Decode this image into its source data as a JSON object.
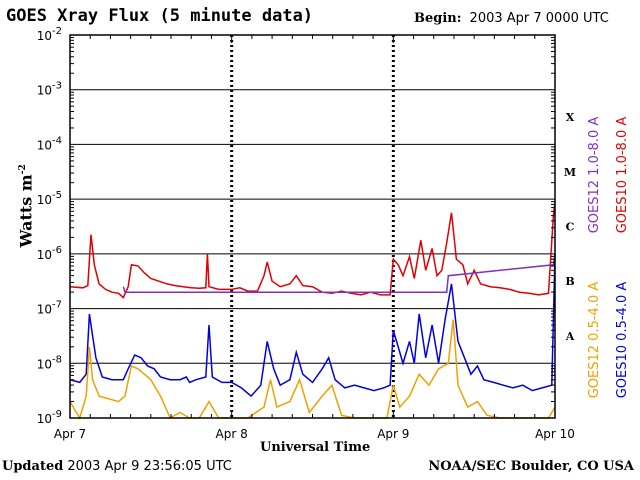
{
  "header": {
    "title": "GOES Xray Flux (5 minute data)",
    "begin_label": "Begin:",
    "begin_value": "2003 Apr  7 0000 UTC"
  },
  "footer": {
    "updated_label": "Updated",
    "updated_value": "2003 Apr  9 23:56:05 UTC",
    "credit": "NOAA/SEC Boulder, CO USA"
  },
  "chart_data": {
    "type": "line",
    "title": "GOES Xray Flux (5 minute data)",
    "xlabel": "Universal Time",
    "ylabel": "Watts m",
    "ylabel_sup": "-2",
    "log_scale": true,
    "grid": true,
    "xlim": [
      0,
      3
    ],
    "ylim_exponents": [
      -9,
      -2
    ],
    "x_ticks": [
      {
        "x": 0,
        "label": "Apr 7"
      },
      {
        "x": 1,
        "label": "Apr 8"
      },
      {
        "x": 2,
        "label": "Apr 9"
      },
      {
        "x": 3,
        "label": "Apr 10"
      }
    ],
    "y_ticks": [
      {
        "exp": -2,
        "label": "10",
        "sup": "-2"
      },
      {
        "exp": -3,
        "label": "10",
        "sup": "-3"
      },
      {
        "exp": -4,
        "label": "10",
        "sup": "-4"
      },
      {
        "exp": -5,
        "label": "10",
        "sup": "-5"
      },
      {
        "exp": -6,
        "label": "10",
        "sup": "-6"
      },
      {
        "exp": -7,
        "label": "10",
        "sup": "-7"
      },
      {
        "exp": -8,
        "label": "10",
        "sup": "-8"
      },
      {
        "exp": -9,
        "label": "10",
        "sup": "-9"
      }
    ],
    "flare_classes": [
      {
        "label": "X",
        "exp": -3.5
      },
      {
        "label": "M",
        "exp": -4.5
      },
      {
        "label": "C",
        "exp": -5.5
      },
      {
        "label": "B",
        "exp": -6.5
      },
      {
        "label": "A",
        "exp": -7.5
      }
    ],
    "legend": [
      {
        "text": "GOES12 1.0-8.0 A",
        "color": "#8030c0"
      },
      {
        "text": "GOES10 1.0-8.0 A",
        "color": "#e00000"
      },
      {
        "text": "GOES12 0.5-4.0 A",
        "color": "#f0a000"
      },
      {
        "text": "GOES10 0.5-4.0 A",
        "color": "#0000e0"
      }
    ],
    "series": [
      {
        "name": "GOES10 1.0-8.0 A",
        "color": "#e00000",
        "points": [
          [
            0.0,
            -6.6
          ],
          [
            0.08,
            -6.62
          ],
          [
            0.11,
            -6.58
          ],
          [
            0.13,
            -5.65
          ],
          [
            0.15,
            -6.2
          ],
          [
            0.18,
            -6.55
          ],
          [
            0.22,
            -6.65
          ],
          [
            0.26,
            -6.7
          ],
          [
            0.3,
            -6.72
          ],
          [
            0.33,
            -6.8
          ],
          [
            0.36,
            -6.6
          ],
          [
            0.38,
            -6.2
          ],
          [
            0.42,
            -6.22
          ],
          [
            0.46,
            -6.35
          ],
          [
            0.5,
            -6.45
          ],
          [
            0.55,
            -6.5
          ],
          [
            0.6,
            -6.55
          ],
          [
            0.65,
            -6.58
          ],
          [
            0.7,
            -6.6
          ],
          [
            0.75,
            -6.62
          ],
          [
            0.8,
            -6.63
          ],
          [
            0.84,
            -6.62
          ],
          [
            0.85,
            -6.0
          ],
          [
            0.86,
            -6.6
          ],
          [
            0.92,
            -6.65
          ],
          [
            1.0,
            -6.65
          ],
          [
            1.05,
            -6.62
          ],
          [
            1.1,
            -6.68
          ],
          [
            1.16,
            -6.68
          ],
          [
            1.2,
            -6.4
          ],
          [
            1.22,
            -6.15
          ],
          [
            1.25,
            -6.5
          ],
          [
            1.3,
            -6.6
          ],
          [
            1.36,
            -6.55
          ],
          [
            1.4,
            -6.4
          ],
          [
            1.44,
            -6.58
          ],
          [
            1.5,
            -6.6
          ],
          [
            1.56,
            -6.7
          ],
          [
            1.62,
            -6.72
          ],
          [
            1.68,
            -6.68
          ],
          [
            1.74,
            -6.72
          ],
          [
            1.8,
            -6.75
          ],
          [
            1.86,
            -6.7
          ],
          [
            1.92,
            -6.75
          ],
          [
            1.98,
            -6.75
          ],
          [
            2.0,
            -6.1
          ],
          [
            2.03,
            -6.2
          ],
          [
            2.06,
            -6.4
          ],
          [
            2.1,
            -6.05
          ],
          [
            2.13,
            -6.45
          ],
          [
            2.17,
            -5.75
          ],
          [
            2.2,
            -6.3
          ],
          [
            2.24,
            -5.9
          ],
          [
            2.27,
            -6.4
          ],
          [
            2.3,
            -6.3
          ],
          [
            2.33,
            -5.8
          ],
          [
            2.36,
            -5.25
          ],
          [
            2.39,
            -6.1
          ],
          [
            2.43,
            -6.2
          ],
          [
            2.46,
            -6.55
          ],
          [
            2.5,
            -6.3
          ],
          [
            2.54,
            -6.55
          ],
          [
            2.6,
            -6.6
          ],
          [
            2.66,
            -6.62
          ],
          [
            2.72,
            -6.65
          ],
          [
            2.78,
            -6.7
          ],
          [
            2.84,
            -6.72
          ],
          [
            2.9,
            -6.75
          ],
          [
            2.96,
            -6.72
          ],
          [
            2.99,
            -5.3
          ],
          [
            3.0,
            -5.05
          ]
        ]
      },
      {
        "name": "GOES10 0.5-4.0 A",
        "color": "#0000e0",
        "points": [
          [
            0.0,
            -8.3
          ],
          [
            0.06,
            -8.35
          ],
          [
            0.1,
            -8.2
          ],
          [
            0.12,
            -7.1
          ],
          [
            0.14,
            -7.5
          ],
          [
            0.16,
            -7.9
          ],
          [
            0.2,
            -8.25
          ],
          [
            0.26,
            -8.3
          ],
          [
            0.33,
            -8.3
          ],
          [
            0.36,
            -8.1
          ],
          [
            0.4,
            -7.85
          ],
          [
            0.44,
            -7.9
          ],
          [
            0.48,
            -8.05
          ],
          [
            0.52,
            -8.1
          ],
          [
            0.56,
            -8.25
          ],
          [
            0.62,
            -8.3
          ],
          [
            0.68,
            -8.3
          ],
          [
            0.72,
            -8.25
          ],
          [
            0.74,
            -8.35
          ],
          [
            0.78,
            -8.3
          ],
          [
            0.84,
            -8.25
          ],
          [
            0.86,
            -7.3
          ],
          [
            0.88,
            -8.25
          ],
          [
            0.94,
            -8.35
          ],
          [
            1.0,
            -8.35
          ],
          [
            1.06,
            -8.45
          ],
          [
            1.12,
            -8.6
          ],
          [
            1.18,
            -8.4
          ],
          [
            1.22,
            -7.6
          ],
          [
            1.26,
            -8.1
          ],
          [
            1.3,
            -8.4
          ],
          [
            1.36,
            -8.3
          ],
          [
            1.4,
            -7.8
          ],
          [
            1.44,
            -8.2
          ],
          [
            1.5,
            -8.35
          ],
          [
            1.56,
            -8.1
          ],
          [
            1.6,
            -7.9
          ],
          [
            1.64,
            -8.3
          ],
          [
            1.7,
            -8.45
          ],
          [
            1.76,
            -8.4
          ],
          [
            1.82,
            -8.45
          ],
          [
            1.88,
            -8.5
          ],
          [
            1.94,
            -8.45
          ],
          [
            1.98,
            -8.4
          ],
          [
            2.0,
            -7.4
          ],
          [
            2.03,
            -7.7
          ],
          [
            2.06,
            -8.0
          ],
          [
            2.1,
            -7.6
          ],
          [
            2.13,
            -8.0
          ],
          [
            2.16,
            -7.1
          ],
          [
            2.2,
            -7.9
          ],
          [
            2.24,
            -7.3
          ],
          [
            2.28,
            -8.0
          ],
          [
            2.32,
            -7.2
          ],
          [
            2.36,
            -6.55
          ],
          [
            2.4,
            -7.6
          ],
          [
            2.44,
            -7.9
          ],
          [
            2.48,
            -8.2
          ],
          [
            2.52,
            -8.05
          ],
          [
            2.56,
            -8.3
          ],
          [
            2.62,
            -8.35
          ],
          [
            2.68,
            -8.4
          ],
          [
            2.74,
            -8.45
          ],
          [
            2.8,
            -8.4
          ],
          [
            2.86,
            -8.5
          ],
          [
            2.92,
            -8.45
          ],
          [
            2.98,
            -8.4
          ],
          [
            3.0,
            -6.0
          ]
        ]
      },
      {
        "name": "GOES12 0.5-4.0 A",
        "color": "#f0a000",
        "points": [
          [
            0.0,
            -8.7
          ],
          [
            0.06,
            -9.0
          ],
          [
            0.1,
            -8.6
          ],
          [
            0.12,
            -7.7
          ],
          [
            0.14,
            -8.3
          ],
          [
            0.18,
            -8.6
          ],
          [
            0.24,
            -8.65
          ],
          [
            0.3,
            -8.7
          ],
          [
            0.34,
            -8.6
          ],
          [
            0.38,
            -8.05
          ],
          [
            0.42,
            -8.1
          ],
          [
            0.46,
            -8.2
          ],
          [
            0.5,
            -8.3
          ],
          [
            0.56,
            -8.6
          ],
          [
            0.62,
            -9.0
          ],
          [
            0.68,
            -8.9
          ],
          [
            0.74,
            -9.0
          ],
          [
            0.8,
            -9.0
          ],
          [
            0.86,
            -8.7
          ],
          [
            0.92,
            -9.0
          ],
          [
            1.0,
            -9.0
          ],
          [
            1.1,
            -9.0
          ],
          [
            1.2,
            -8.8
          ],
          [
            1.24,
            -8.3
          ],
          [
            1.28,
            -8.8
          ],
          [
            1.36,
            -8.7
          ],
          [
            1.42,
            -8.3
          ],
          [
            1.48,
            -8.9
          ],
          [
            1.56,
            -8.6
          ],
          [
            1.62,
            -8.4
          ],
          [
            1.68,
            -8.95
          ],
          [
            1.76,
            -9.0
          ],
          [
            1.86,
            -9.0
          ],
          [
            1.96,
            -9.0
          ],
          [
            2.0,
            -8.4
          ],
          [
            2.04,
            -8.8
          ],
          [
            2.1,
            -8.6
          ],
          [
            2.16,
            -8.2
          ],
          [
            2.22,
            -8.4
          ],
          [
            2.28,
            -8.1
          ],
          [
            2.34,
            -8.0
          ],
          [
            2.37,
            -7.2
          ],
          [
            2.4,
            -8.4
          ],
          [
            2.46,
            -8.8
          ],
          [
            2.52,
            -8.7
          ],
          [
            2.58,
            -8.95
          ],
          [
            2.66,
            -9.0
          ],
          [
            2.76,
            -9.0
          ],
          [
            2.86,
            -9.0
          ],
          [
            2.96,
            -9.0
          ],
          [
            3.0,
            -8.8
          ]
        ]
      },
      {
        "name": "GOES12 1.0-8.0 A",
        "color": "#8030c0",
        "points": [
          [
            0.33,
            -6.6
          ],
          [
            0.34,
            -6.7
          ],
          [
            2.33,
            -6.7
          ],
          [
            2.34,
            -6.4
          ],
          [
            2.99,
            -6.2
          ],
          [
            3.0,
            -6.0
          ]
        ]
      }
    ]
  }
}
